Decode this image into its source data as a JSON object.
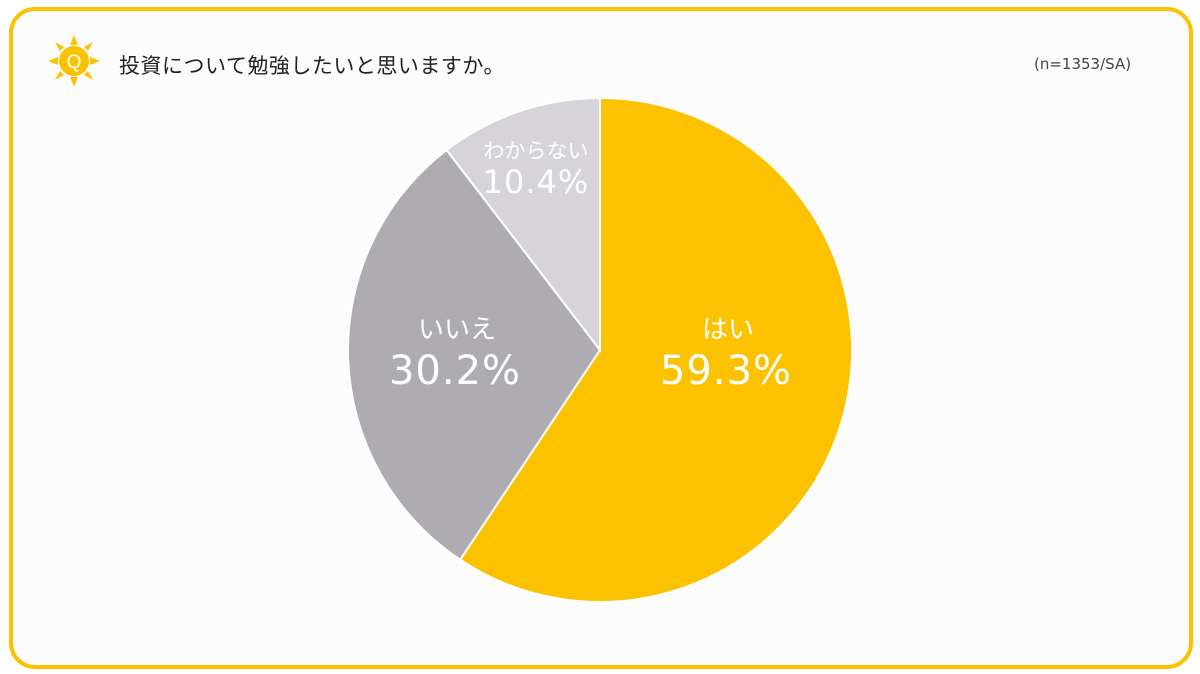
{
  "badge_letter": "Q",
  "question": "投資について勉強したいと思いますか。",
  "sample_note": "(n=1353/SA)",
  "colors": {
    "frame": "#fcc200",
    "yes": "#fcc200",
    "no": "#aeacb1",
    "unknown": "#d6d3d9",
    "label_yes": "#ffffff",
    "label_other": "#ffffff"
  },
  "chart_data": {
    "type": "pie",
    "title": "投資について勉強したいと思いますか。",
    "slices": [
      {
        "label": "はい",
        "value": 59.3,
        "display": "59.3%",
        "color": "#fcc200"
      },
      {
        "label": "いいえ",
        "value": 30.2,
        "display": "30.2%",
        "color": "#aeacb1"
      },
      {
        "label": "わからない",
        "value": 10.4,
        "display": "10.4%",
        "color": "#d6d3d9"
      }
    ],
    "start_angle": "12 o'clock",
    "direction": "clockwise"
  }
}
